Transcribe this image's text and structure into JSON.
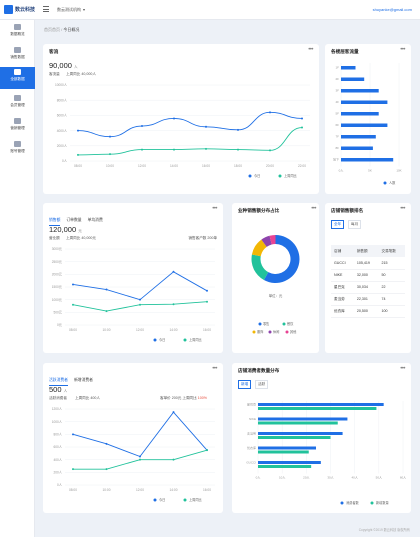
{
  "header": {
    "logo_text": "数云科技",
    "org": "数云测试机构",
    "user": "shuyanke@gmail.com"
  },
  "sidebar": {
    "items": [
      {
        "label": "数据概览"
      },
      {
        "label": "销售数据"
      },
      {
        "label": "全部数据"
      },
      {
        "label": "会员管理"
      },
      {
        "label": "营销管理"
      },
      {
        "label": "账号管理"
      }
    ]
  },
  "breadcrumb": {
    "home": "首页首页",
    "sep": "/",
    "current": "今日概况"
  },
  "card1": {
    "title": "客流",
    "value": "90,000",
    "unit": "人",
    "sub_label": "客流量",
    "compare": "上周同比 40,000人",
    "legend": [
      "今日",
      "上周同比"
    ]
  },
  "card2": {
    "title": "各楼层客流量",
    "legend": [
      "人数"
    ]
  },
  "card3": {
    "tabs": [
      "销售额",
      "订单数量",
      "单均消费"
    ],
    "value": "120,000",
    "unit": "元",
    "sub_label": "营业额",
    "compare": "上周同比 40,000元",
    "right_note": "销售客户数 200单",
    "legend": [
      "今日",
      "上周同比"
    ]
  },
  "card4": {
    "title": "业种销售额分布占比",
    "center_label": "单位：元",
    "legend": [
      "零售",
      "餐饮",
      "服饰",
      "休闲",
      "其他"
    ]
  },
  "card5": {
    "title": "店铺销售额排名",
    "tabs": [
      "全年",
      "每月"
    ],
    "headers": [
      "店铺",
      "销售额",
      "交易笔数"
    ],
    "rows": [
      [
        "GUCCI",
        "105,419",
        "215"
      ],
      [
        "NIKE",
        "32,000",
        "50"
      ],
      [
        "星巴克",
        "30,034",
        "22"
      ],
      [
        "麦当劳",
        "22,301",
        "74"
      ],
      [
        "优衣库",
        "20,500",
        "100"
      ]
    ]
  },
  "card6": {
    "tabs": [
      "活跃消费者",
      "新增消费者"
    ],
    "value": "500",
    "unit": "人",
    "sub_label": "活跃消费者",
    "compare": "上周同比 400人",
    "right_note": "客单价 200元",
    "right_note2": "上周同比",
    "right_pct": "100%",
    "legend": [
      "今日",
      "上周同比"
    ]
  },
  "card7": {
    "title": "店铺消费者数量分布",
    "tabs": [
      "新增",
      "活跃"
    ],
    "legend": [
      "消费者数",
      "新增数量"
    ]
  },
  "footer": {
    "text": "Copyright ©2019 数云科技 版权所有"
  },
  "chart_data": [
    {
      "type": "line",
      "x": [
        "08:00",
        "10:00",
        "12:00",
        "14:00",
        "16:00",
        "18:00",
        "20:00",
        "22:00"
      ],
      "series": [
        {
          "name": "今日",
          "values": [
            4000,
            3200,
            4600,
            5600,
            4500,
            4100,
            6400,
            5600
          ]
        },
        {
          "name": "上周同比",
          "values": [
            800,
            900,
            1500,
            1500,
            1600,
            1500,
            1400,
            4400
          ]
        }
      ],
      "ylim": [
        0,
        10000
      ],
      "yticks": [
        "10000人",
        "8000人",
        "6000人",
        "4000人",
        "2000人",
        "0人"
      ]
    },
    {
      "type": "bar",
      "categories": [
        "1F",
        "2F",
        "3F",
        "4F",
        "5F",
        "6F",
        "7F",
        "8F",
        "地下"
      ],
      "values": [
        2500,
        4000,
        6500,
        8000,
        6500,
        8000,
        6000,
        5500,
        9000
      ],
      "xticks": [
        "0人",
        "5K",
        "10K"
      ]
    },
    {
      "type": "line",
      "x": [
        "08:00",
        "10:00",
        "12:00",
        "14:00",
        "16:00"
      ],
      "series": [
        {
          "name": "今日",
          "values": [
            1600,
            1400,
            1000,
            2100,
            1350
          ]
        },
        {
          "name": "上周同比",
          "values": [
            800,
            550,
            800,
            820,
            920
          ]
        }
      ],
      "ylim": [
        0,
        3000
      ],
      "yticks": [
        "3000元",
        "2500元",
        "2000元",
        "1500元",
        "1000元",
        "500元",
        "0元"
      ]
    },
    {
      "type": "pie",
      "labels": [
        "零售",
        "餐饮",
        "服饰",
        "休闲",
        "其他"
      ],
      "values": [
        58,
        20,
        12,
        6,
        4
      ]
    },
    {
      "type": "line",
      "x": [
        "08:00",
        "10:00",
        "12:00",
        "14:00",
        "16:00"
      ],
      "series": [
        {
          "name": "今日",
          "values": [
            800,
            650,
            450,
            1150,
            550
          ]
        },
        {
          "name": "上周同比",
          "values": [
            250,
            250,
            400,
            400,
            550
          ]
        }
      ],
      "ylim": [
        0,
        1200
      ],
      "yticks": [
        "1200人",
        "1000人",
        "800人",
        "600人",
        "400人",
        "200人",
        "0人"
      ]
    },
    {
      "type": "bar",
      "categories": [
        "星巴克",
        "NIKE",
        "麦当劳",
        "优衣库",
        "GUCCI"
      ],
      "series": [
        {
          "name": "消费者数",
          "values": [
            52,
            37,
            35,
            24,
            26
          ]
        },
        {
          "name": "新增数量",
          "values": [
            49,
            33,
            30,
            21,
            22
          ]
        }
      ],
      "xticks": [
        "0人",
        "10人",
        "20人",
        "30人",
        "40人",
        "50人",
        "60人"
      ]
    }
  ]
}
